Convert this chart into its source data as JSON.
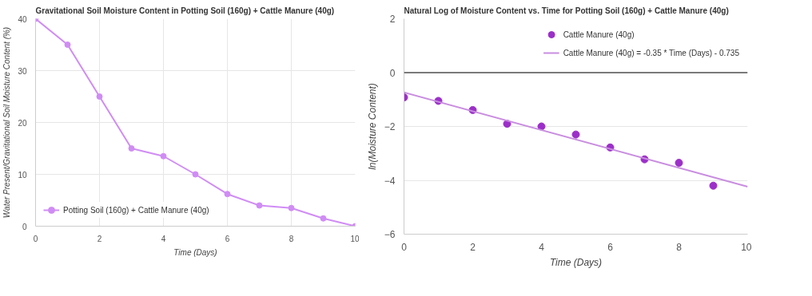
{
  "chart_data": [
    {
      "type": "line",
      "title": "Gravitational Soil Moisture Content in Potting Soil (160g) + Cattle Manure (40g)",
      "xlabel": "Time (Days)",
      "ylabel": "Water Present/Gravitational Soil Moisture Content (%)",
      "x": [
        0,
        1,
        2,
        3,
        4,
        5,
        6,
        7,
        8,
        9,
        10
      ],
      "series": [
        {
          "name": "Potting Soil (160g) + Cattle Manure (40g)",
          "color": "#d08cf5",
          "values": [
            40,
            35,
            25,
            15,
            13.5,
            10,
            6.2,
            4,
            3.5,
            1.5,
            0
          ]
        }
      ],
      "xlim": [
        0,
        10
      ],
      "xticks": [
        0,
        2,
        4,
        6,
        8,
        10
      ],
      "ylim": [
        0,
        40
      ],
      "yticks": [
        0,
        10,
        20,
        30,
        40
      ],
      "grid": true,
      "legend": "bottom left",
      "marker": "circle",
      "line_style": "solid"
    },
    {
      "type": "scatter",
      "title": "Natural Log of Moisture Content vs. Time for Potting Soil (160g) + Cattle Manure (40g)",
      "xlabel": "Time (Days)",
      "ylabel": "ln(Moisture Content)",
      "x": [
        0,
        1,
        2,
        3,
        4,
        5,
        6,
        7,
        8,
        9
      ],
      "series": [
        {
          "name": "Cattle Manure (40g)",
          "color": "#9c2fc9",
          "values": [
            -0.92,
            -1.05,
            -1.39,
            -1.9,
            -2.0,
            -2.3,
            -2.78,
            -3.22,
            -3.35,
            -4.2
          ]
        },
        {
          "type": "line",
          "marker": "none",
          "name": "Cattle Manure (40g) = -0.35 * Time (Days) - 0.735",
          "color": "#c98de0",
          "x": [
            0,
            10
          ],
          "values": [
            -0.735,
            -4.235
          ]
        }
      ],
      "xlim": [
        0,
        10
      ],
      "xticks": [
        0,
        2,
        4,
        6,
        8,
        10
      ],
      "ylim": [
        -6,
        2
      ],
      "yticks": [
        -6,
        -4,
        -2,
        0,
        2
      ],
      "grid": "y",
      "legend": "top right",
      "marker": "circle",
      "ref_lines": [
        {
          "axis": "y",
          "value": 0,
          "color": "#000000"
        }
      ]
    }
  ]
}
